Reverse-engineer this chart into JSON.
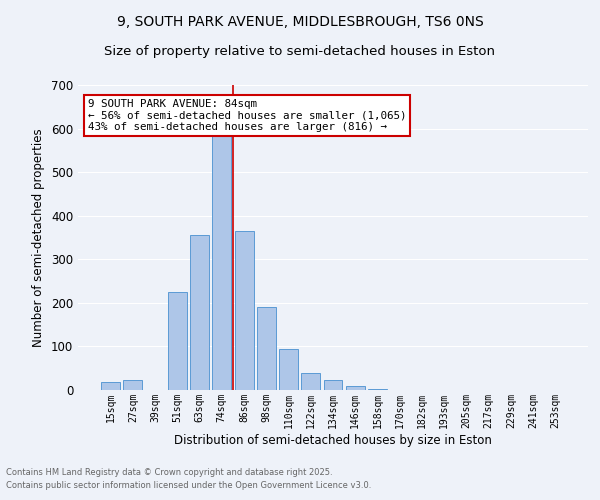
{
  "title": "9, SOUTH PARK AVENUE, MIDDLESBROUGH, TS6 0NS",
  "subtitle": "Size of property relative to semi-detached houses in Eston",
  "xlabel": "Distribution of semi-detached houses by size in Eston",
  "ylabel": "Number of semi-detached properties",
  "footnote1": "Contains HM Land Registry data © Crown copyright and database right 2025.",
  "footnote2": "Contains public sector information licensed under the Open Government Licence v3.0.",
  "bar_labels": [
    "15sqm",
    "27sqm",
    "39sqm",
    "51sqm",
    "63sqm",
    "74sqm",
    "86sqm",
    "98sqm",
    "110sqm",
    "122sqm",
    "134sqm",
    "146sqm",
    "158sqm",
    "170sqm",
    "182sqm",
    "193sqm",
    "205sqm",
    "217sqm",
    "229sqm",
    "241sqm",
    "253sqm"
  ],
  "bar_values": [
    18,
    22,
    0,
    225,
    355,
    590,
    365,
    190,
    95,
    40,
    22,
    10,
    3,
    0,
    0,
    0,
    0,
    0,
    0,
    0,
    0
  ],
  "bar_color": "#aec6e8",
  "bar_edge_color": "#5b9bd5",
  "ylim": [
    0,
    700
  ],
  "yticks": [
    0,
    100,
    200,
    300,
    400,
    500,
    600,
    700
  ],
  "property_bin_index": 5,
  "vline_color": "#cc0000",
  "annotation_text": "9 SOUTH PARK AVENUE: 84sqm\n← 56% of semi-detached houses are smaller (1,065)\n43% of semi-detached houses are larger (816) →",
  "annotation_box_color": "#cc0000",
  "background_color": "#eef2f9",
  "grid_color": "#ffffff",
  "title_fontsize": 10,
  "subtitle_fontsize": 9.5
}
